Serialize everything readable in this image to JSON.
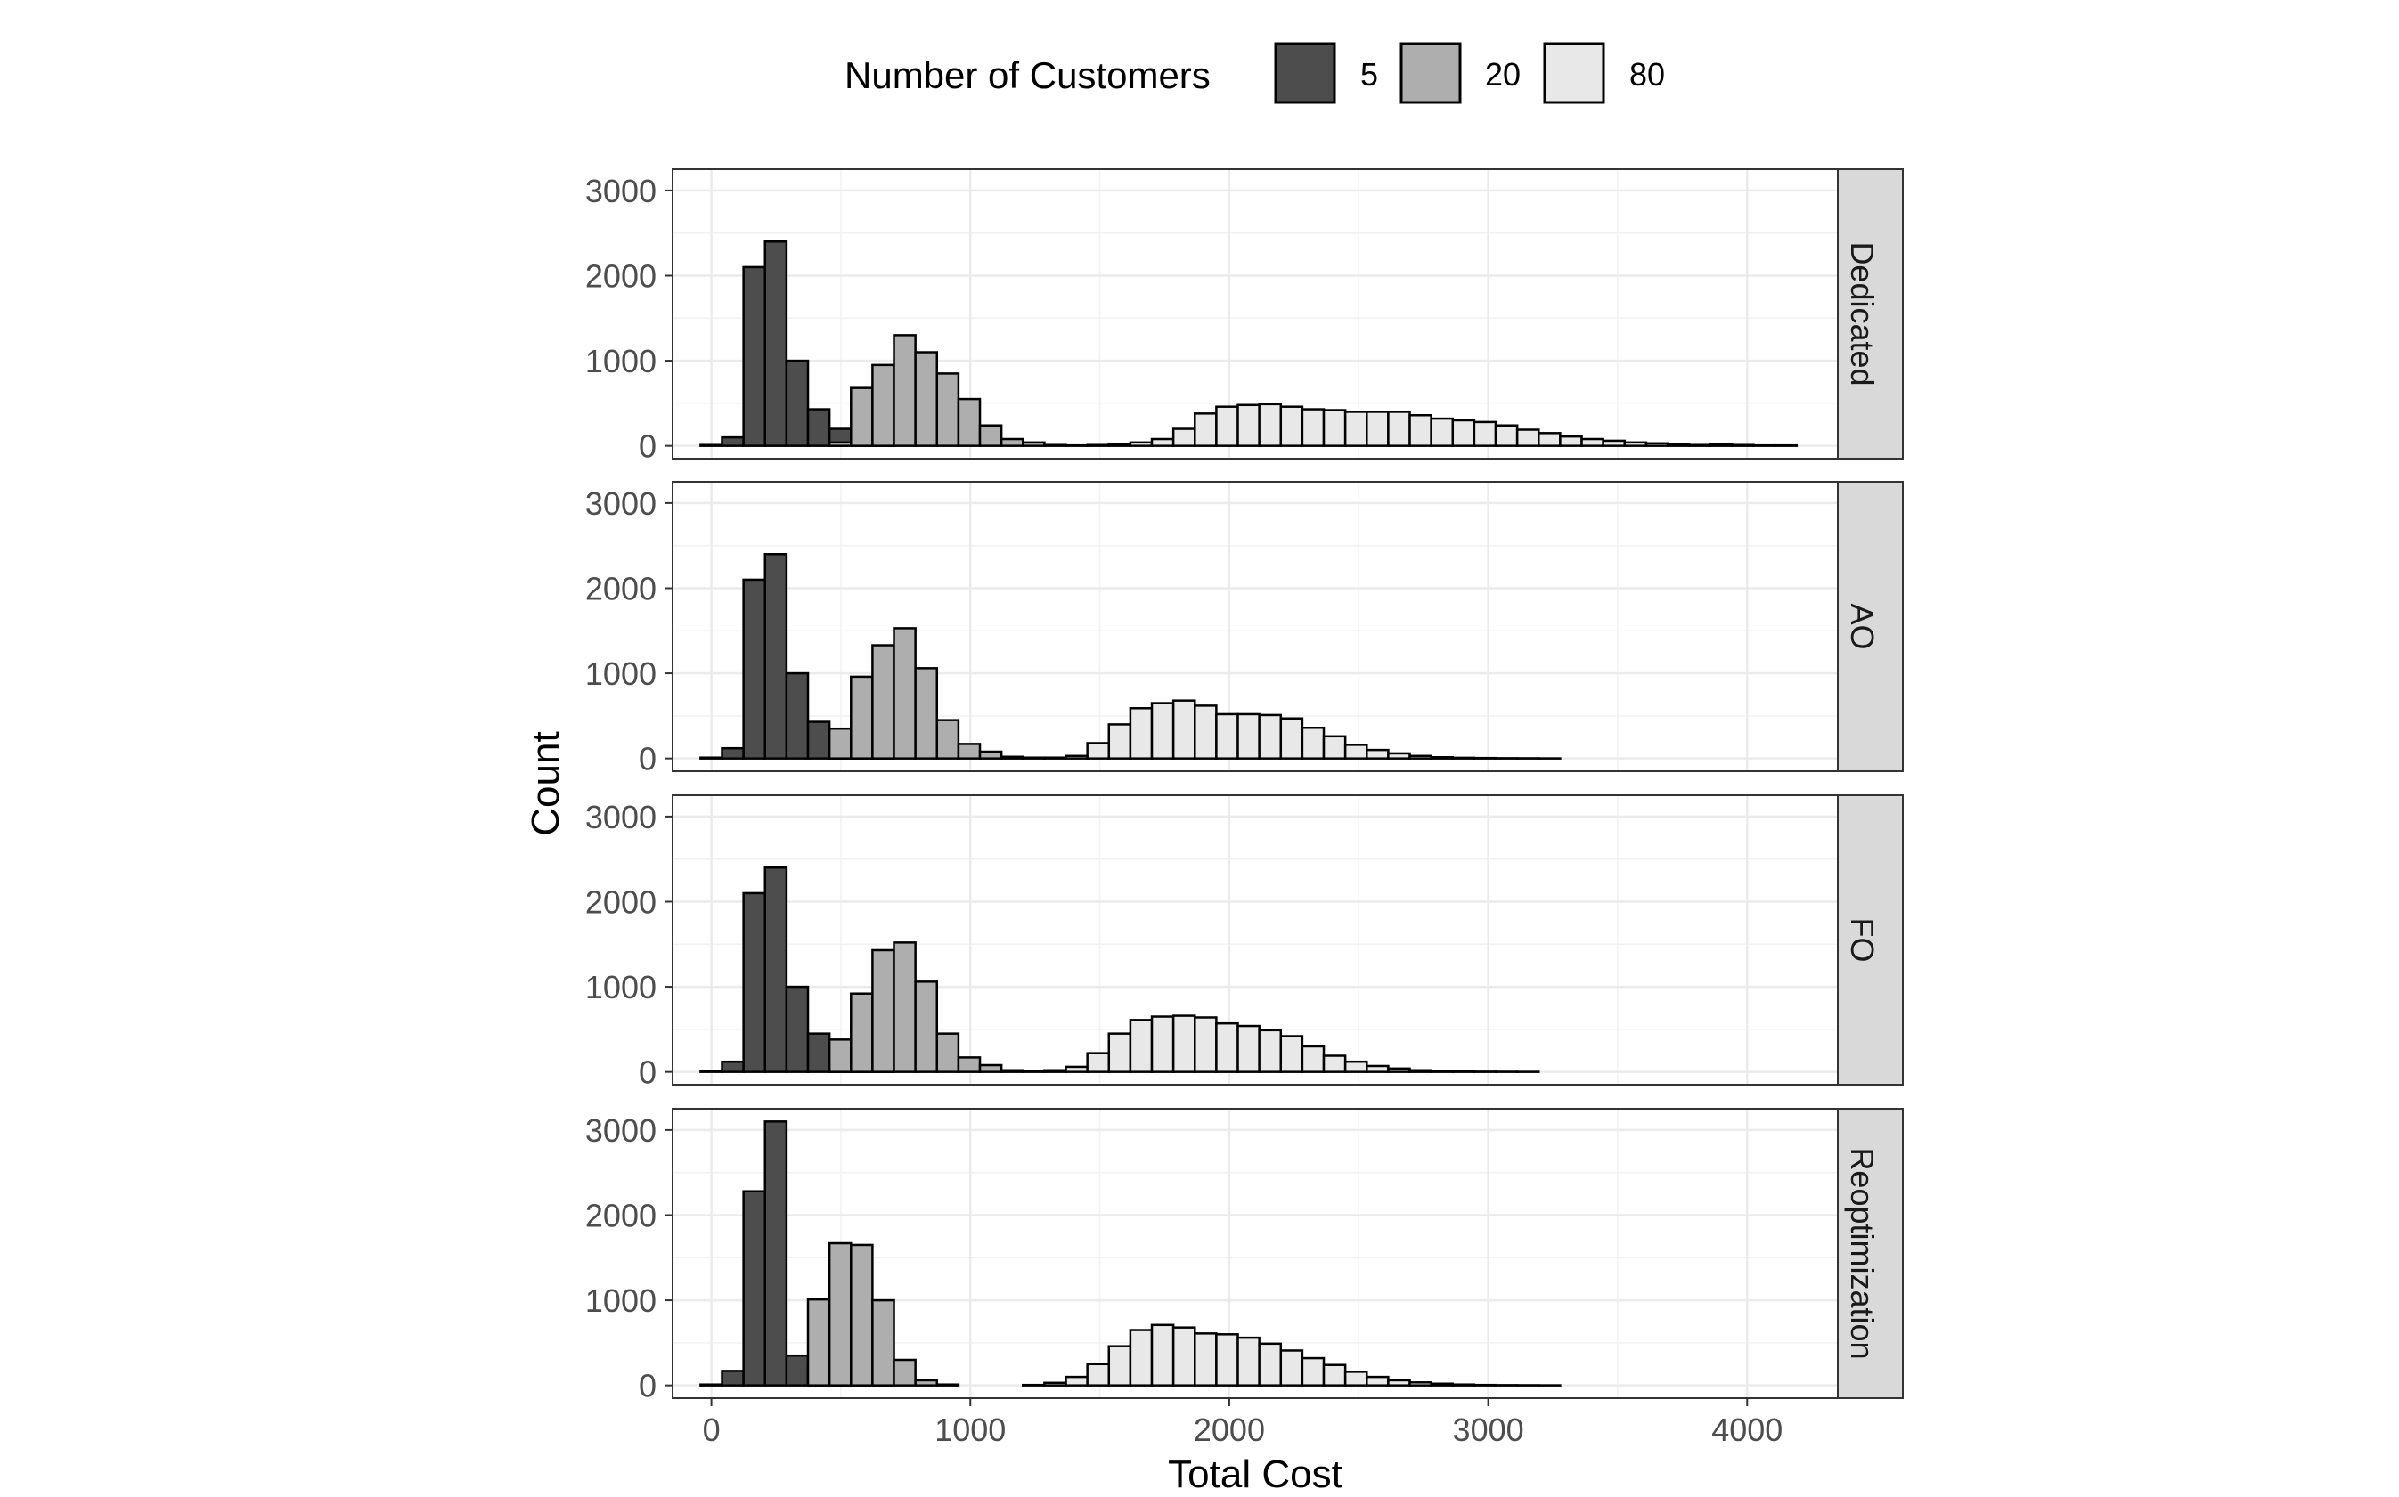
{
  "chart_data": {
    "type": "bar",
    "subtype": "faceted-histogram",
    "title": "",
    "xlabel": "Total Cost",
    "ylabel": "Count",
    "xlim": [
      -150,
      4350
    ],
    "ylim": [
      -150,
      3250
    ],
    "x_ticks": [
      0,
      1000,
      2000,
      3000,
      4000
    ],
    "y_ticks": [
      0,
      1000,
      2000,
      3000
    ],
    "bin_width": 83,
    "bin_start": -42,
    "legend": {
      "title": "Number of Customers",
      "position": "top",
      "entries": [
        {
          "label": "5",
          "color": "#4d4d4d"
        },
        {
          "label": "20",
          "color": "#aeaeae"
        },
        {
          "label": "80",
          "color": "#e8e8e8"
        }
      ]
    },
    "grid": true,
    "facets": [
      {
        "label": "Dedicated",
        "series": [
          {
            "name": "5",
            "values": [
              10,
              100,
              2100,
              2400,
              1000,
              430,
              200,
              50,
              10,
              0,
              0,
              0,
              0,
              0,
              0,
              0,
              0,
              0,
              0,
              0,
              0,
              0,
              0,
              0,
              0,
              0,
              0,
              0,
              0,
              0,
              0,
              0,
              0,
              0,
              0,
              0,
              0,
              0,
              0,
              0,
              0,
              0,
              0,
              0,
              0,
              0,
              0,
              0,
              0,
              0,
              0
            ]
          },
          {
            "name": "20",
            "values": [
              0,
              0,
              0,
              0,
              0,
              0,
              40,
              680,
              950,
              1300,
              1100,
              850,
              550,
              240,
              80,
              40,
              10,
              0,
              0,
              0,
              0,
              0,
              0,
              0,
              0,
              0,
              0,
              0,
              0,
              0,
              0,
              0,
              0,
              0,
              0,
              0,
              0,
              0,
              0,
              0,
              0,
              0,
              0,
              0,
              0,
              0,
              0,
              0,
              0,
              0,
              0
            ]
          },
          {
            "name": "80",
            "values": [
              0,
              0,
              0,
              0,
              0,
              0,
              0,
              0,
              0,
              0,
              0,
              0,
              0,
              0,
              0,
              0,
              0,
              5,
              10,
              20,
              40,
              80,
              200,
              380,
              460,
              480,
              490,
              460,
              430,
              420,
              400,
              400,
              400,
              360,
              320,
              300,
              280,
              240,
              190,
              150,
              110,
              80,
              60,
              40,
              30,
              20,
              10,
              20,
              10,
              5,
              5
            ]
          }
        ]
      },
      {
        "label": "AO",
        "series": [
          {
            "name": "5",
            "values": [
              10,
              120,
              2100,
              2400,
              1000,
              430,
              210,
              50,
              10,
              0,
              0,
              0,
              0,
              0,
              0,
              0,
              0,
              0,
              0,
              0,
              0,
              0,
              0,
              0,
              0,
              0,
              0,
              0,
              0,
              0,
              0,
              0,
              0,
              0,
              0,
              0,
              0,
              0,
              0,
              0,
              0,
              0,
              0,
              0,
              0,
              0,
              0,
              0,
              0,
              0,
              0
            ]
          },
          {
            "name": "20",
            "values": [
              0,
              0,
              0,
              0,
              0,
              0,
              350,
              960,
              1330,
              1530,
              1060,
              450,
              170,
              80,
              20,
              10,
              0,
              0,
              0,
              0,
              0,
              0,
              0,
              0,
              0,
              0,
              0,
              0,
              0,
              0,
              0,
              0,
              0,
              0,
              0,
              0,
              0,
              0,
              0,
              0,
              0,
              0,
              0,
              0,
              0,
              0,
              0,
              0,
              0,
              0,
              0
            ]
          },
          {
            "name": "80",
            "values": [
              0,
              0,
              0,
              0,
              0,
              0,
              0,
              0,
              0,
              0,
              0,
              0,
              0,
              0,
              0,
              0,
              10,
              30,
              180,
              400,
              590,
              650,
              680,
              620,
              520,
              520,
              510,
              470,
              360,
              260,
              160,
              100,
              60,
              30,
              15,
              8,
              5,
              3,
              2,
              1,
              0,
              0,
              0,
              0,
              0,
              0,
              0,
              0,
              0,
              0,
              0
            ]
          }
        ]
      },
      {
        "label": "FO",
        "series": [
          {
            "name": "5",
            "values": [
              10,
              120,
              2100,
              2400,
              1000,
              450,
              210,
              50,
              10,
              0,
              0,
              0,
              0,
              0,
              0,
              0,
              0,
              0,
              0,
              0,
              0,
              0,
              0,
              0,
              0,
              0,
              0,
              0,
              0,
              0,
              0,
              0,
              0,
              0,
              0,
              0,
              0,
              0,
              0,
              0,
              0,
              0,
              0,
              0,
              0,
              0,
              0,
              0,
              0,
              0,
              0
            ]
          },
          {
            "name": "20",
            "values": [
              0,
              0,
              0,
              0,
              0,
              0,
              380,
              920,
              1430,
              1520,
              1060,
              450,
              170,
              80,
              20,
              10,
              0,
              0,
              0,
              0,
              0,
              0,
              0,
              0,
              0,
              0,
              0,
              0,
              0,
              0,
              0,
              0,
              0,
              0,
              0,
              0,
              0,
              0,
              0,
              0,
              0,
              0,
              0,
              0,
              0,
              0,
              0,
              0,
              0,
              0,
              0
            ]
          },
          {
            "name": "80",
            "values": [
              0,
              0,
              0,
              0,
              0,
              0,
              0,
              0,
              0,
              0,
              0,
              0,
              0,
              0,
              0,
              0,
              20,
              60,
              220,
              450,
              610,
              650,
              660,
              640,
              570,
              540,
              490,
              420,
              300,
              190,
              120,
              70,
              40,
              20,
              10,
              5,
              3,
              2,
              1,
              0,
              0,
              0,
              0,
              0,
              0,
              0,
              0,
              0,
              0,
              0,
              0
            ]
          }
        ]
      },
      {
        "label": "Reoptimization",
        "series": [
          {
            "name": "5",
            "values": [
              10,
              170,
              2280,
              3100,
              350,
              220,
              70,
              20,
              5,
              0,
              0,
              0,
              0,
              0,
              0,
              0,
              0,
              0,
              0,
              0,
              0,
              0,
              0,
              0,
              0,
              0,
              0,
              0,
              0,
              0,
              0,
              0,
              0,
              0,
              0,
              0,
              0,
              0,
              0,
              0,
              0,
              0,
              0,
              0,
              0,
              0,
              0,
              0,
              0,
              0,
              0
            ]
          },
          {
            "name": "20",
            "values": [
              0,
              0,
              0,
              0,
              0,
              1010,
              1670,
              1650,
              1000,
              300,
              60,
              10,
              0,
              0,
              0,
              0,
              0,
              0,
              0,
              0,
              0,
              0,
              0,
              0,
              0,
              0,
              0,
              0,
              0,
              0,
              0,
              0,
              0,
              0,
              0,
              0,
              0,
              0,
              0,
              0,
              0,
              0,
              0,
              0,
              0,
              0,
              0,
              0,
              0,
              0,
              0
            ]
          },
          {
            "name": "80",
            "values": [
              0,
              0,
              0,
              0,
              0,
              0,
              0,
              0,
              0,
              0,
              0,
              0,
              0,
              0,
              0,
              5,
              30,
              100,
              250,
              460,
              650,
              710,
              680,
              610,
              600,
              560,
              490,
              410,
              320,
              240,
              160,
              100,
              60,
              35,
              20,
              10,
              5,
              3,
              2,
              1,
              0,
              0,
              0,
              0,
              0,
              0,
              0,
              0,
              0,
              0,
              0
            ]
          }
        ]
      }
    ]
  }
}
